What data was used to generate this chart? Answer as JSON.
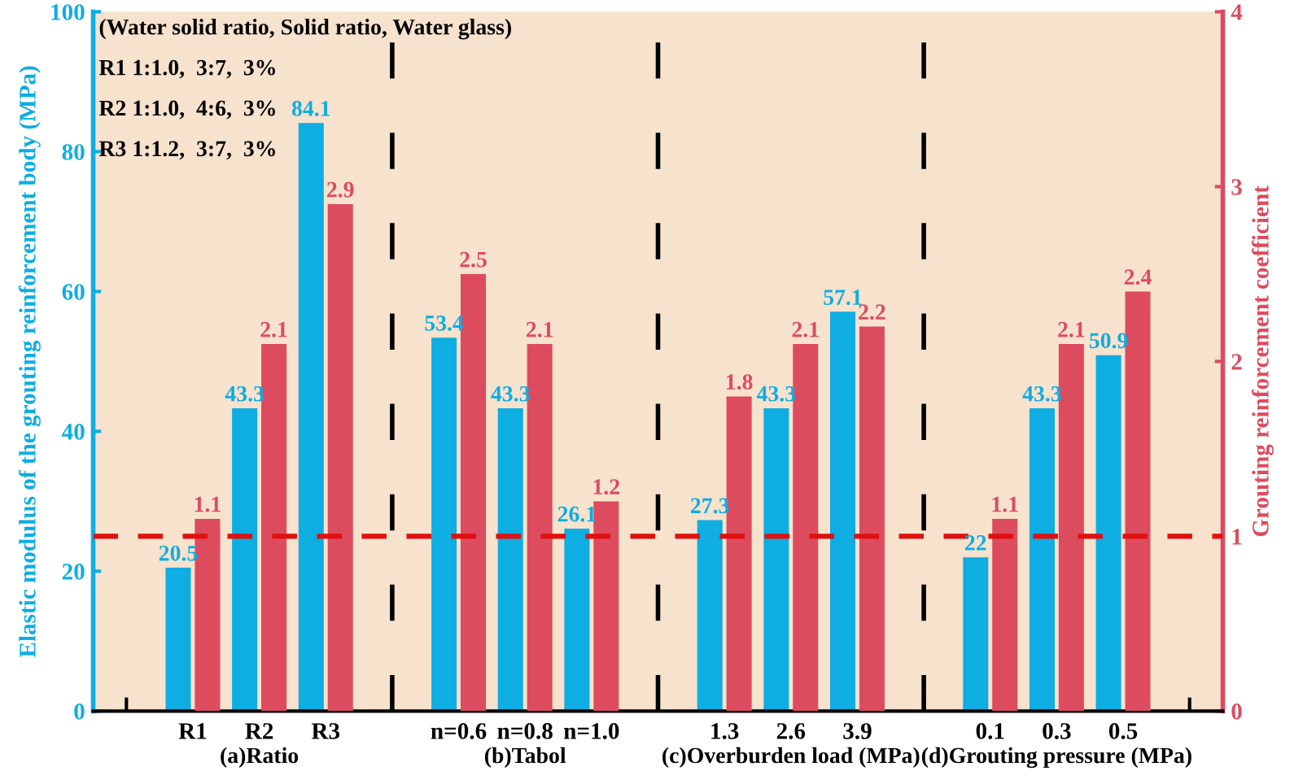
{
  "chart_data": {
    "type": "bar",
    "categories": [
      null,
      "R1",
      "R2",
      "R3",
      null,
      "n=0.6",
      "n=0.8",
      "n=1.0",
      null,
      "1.3",
      "2.6",
      "3.9",
      null,
      "0.1",
      "0.3",
      "0.5",
      null
    ],
    "ylabel": "Elastic modulus of the grouting reinforcement body (MPa)",
    "y2label": "Grouting reinforcement coefficient",
    "ylim": [
      0,
      100
    ],
    "yticks": [
      0,
      20,
      40,
      60,
      80,
      100
    ],
    "y2lim": [
      0,
      4
    ],
    "y2ticks": [
      0,
      1,
      2,
      3,
      4
    ],
    "series": [
      {
        "color": "#0eade2",
        "values": [
          null,
          20.5,
          43.3,
          84.1,
          null,
          53.4,
          43.3,
          26.1,
          null,
          27.3,
          43.3,
          57.1,
          null,
          22,
          43.3,
          50.9,
          null
        ]
      },
      {
        "color": "#dd4b5e",
        "axis": "y2",
        "values": [
          null,
          1.1,
          2.1,
          2.9,
          null,
          2.5,
          2.1,
          1.2,
          null,
          1.8,
          2.1,
          2.2,
          null,
          1.1,
          2.1,
          2.4,
          null
        ]
      }
    ],
    "data_labels": true,
    "ref_lines": [
      {
        "axis": "y2",
        "value": 1,
        "color": "#e01010",
        "line_style": "dashed"
      }
    ],
    "annotations": [
      "(Water solid ratio, Solid ratio, Water glass)",
      "R1 1:1.0,  3:7,  3%",
      "R2 1:1.0,  4:6,  3%",
      "R3 1:1.2,  3:7,  3%",
      "(a)Ratio",
      "(b)Tabol",
      "(c)Overburden load (MPa)",
      "(d)Grouting pressure (MPa)"
    ],
    "grid": "x",
    "legend": false
  }
}
